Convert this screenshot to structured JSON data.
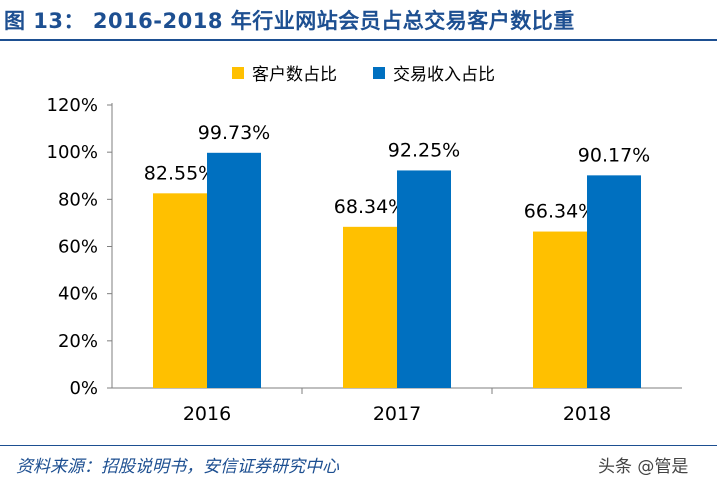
{
  "header": {
    "title": "图 13：  2016-2018 年行业网站会员占总交易客户数比重"
  },
  "chart_data": {
    "type": "bar",
    "categories": [
      "2016",
      "2017",
      "2018"
    ],
    "series": [
      {
        "name": "客户数占比",
        "values": [
          82.55,
          68.34,
          66.34
        ],
        "labels": [
          "82.55%",
          "68.34%",
          "66.34%"
        ],
        "color": "#ffc000"
      },
      {
        "name": "交易收入占比",
        "values": [
          99.73,
          92.25,
          90.17
        ],
        "labels": [
          "99.73%",
          "92.25%",
          "90.17%"
        ],
        "color": "#0070c0"
      }
    ],
    "yticks": [
      "0%",
      "20%",
      "40%",
      "60%",
      "80%",
      "100%",
      "120%"
    ],
    "ylim": [
      0,
      120
    ],
    "grid": false,
    "legend_position": "top-center"
  },
  "footer": {
    "source": "资料来源：招股说明书，安信证券研究中心",
    "watermark": "头条 @管是"
  }
}
